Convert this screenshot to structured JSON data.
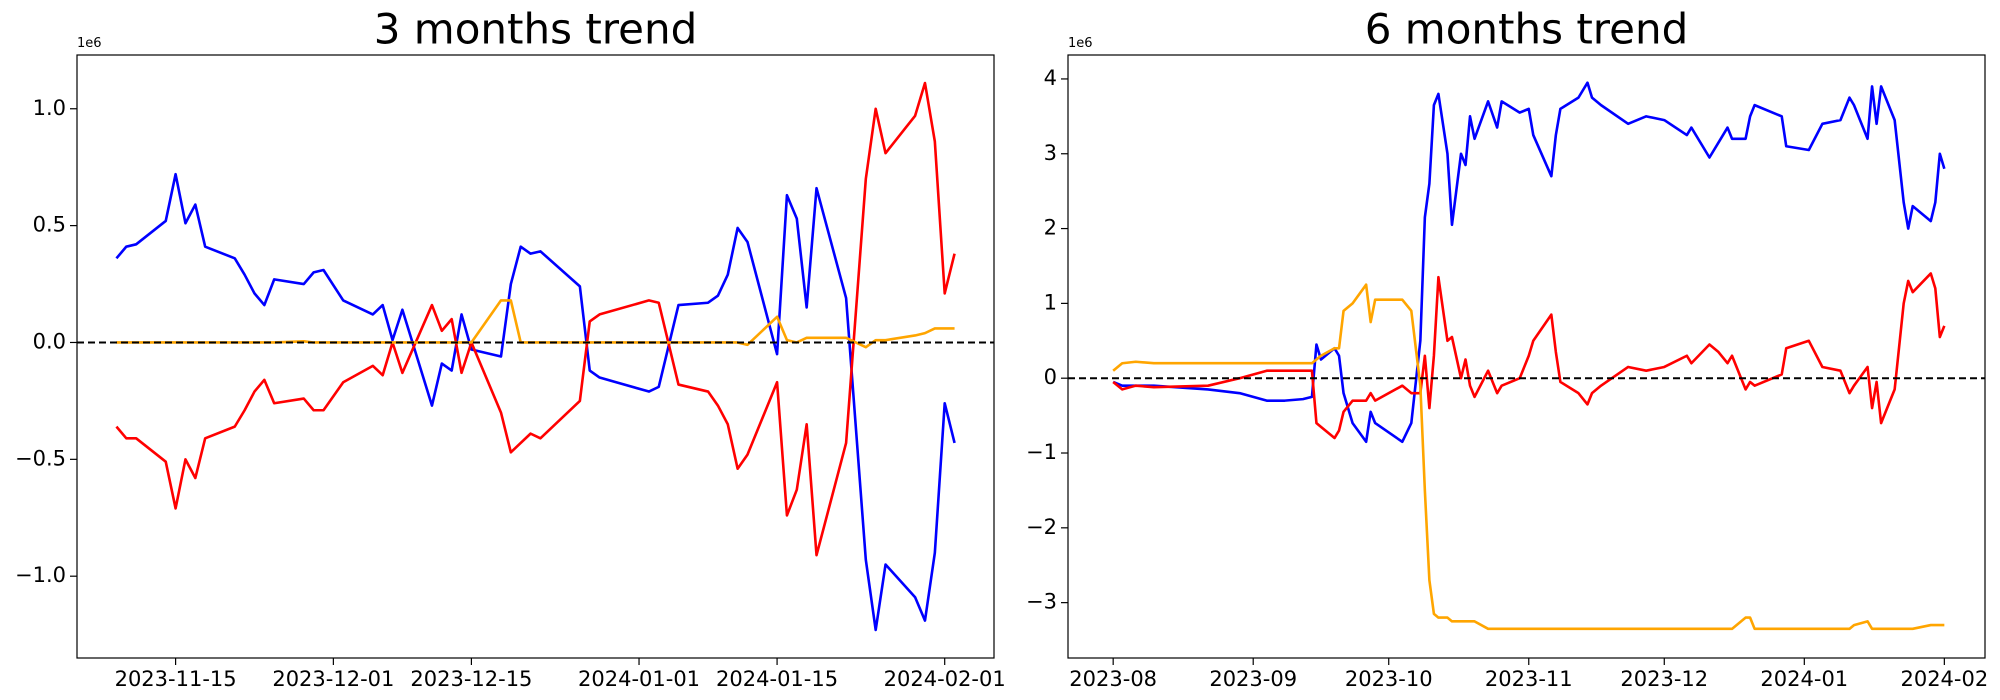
{
  "chart_data": [
    {
      "type": "line",
      "title": "3 months trend",
      "offset_label": "1e6",
      "x": [
        "2023-11-09",
        "2023-11-10",
        "2023-11-11",
        "2023-11-14",
        "2023-11-15",
        "2023-11-16",
        "2023-11-17",
        "2023-11-18",
        "2023-11-21",
        "2023-11-22",
        "2023-11-23",
        "2023-11-24",
        "2023-11-25",
        "2023-11-28",
        "2023-11-29",
        "2023-11-30",
        "2023-12-02",
        "2023-12-05",
        "2023-12-06",
        "2023-12-07",
        "2023-12-08",
        "2023-12-11",
        "2023-12-12",
        "2023-12-13",
        "2023-12-14",
        "2023-12-15",
        "2023-12-18",
        "2023-12-19",
        "2023-12-20",
        "2023-12-21",
        "2023-12-22",
        "2023-12-26",
        "2023-12-27",
        "2023-12-28",
        "2024-01-02",
        "2024-01-03",
        "2024-01-05",
        "2024-01-08",
        "2024-01-09",
        "2024-01-10",
        "2024-01-11",
        "2024-01-12",
        "2024-01-15",
        "2024-01-16",
        "2024-01-17",
        "2024-01-18",
        "2024-01-19",
        "2024-01-22",
        "2024-01-24",
        "2024-01-25",
        "2024-01-26",
        "2024-01-29",
        "2024-01-30",
        "2024-01-31",
        "2024-02-01",
        "2024-02-02"
      ],
      "series": [
        {
          "color": "#0000ff",
          "values": [
            0.36,
            0.41,
            0.42,
            0.52,
            0.72,
            0.51,
            0.59,
            0.41,
            0.36,
            0.29,
            0.21,
            0.16,
            0.27,
            0.25,
            0.3,
            0.31,
            0.18,
            0.12,
            0.16,
            0.01,
            0.14,
            -0.27,
            -0.09,
            -0.12,
            0.12,
            -0.03,
            -0.06,
            0.25,
            0.41,
            0.38,
            0.39,
            0.24,
            -0.12,
            -0.15,
            -0.21,
            -0.19,
            0.16,
            0.17,
            0.2,
            0.29,
            0.49,
            0.43,
            -0.05,
            0.63,
            0.53,
            0.15,
            0.66,
            0.19,
            -0.93,
            -1.23,
            -0.95,
            -1.09,
            -1.19,
            -0.9,
            -0.26,
            -0.43
          ]
        },
        {
          "color": "#ff0000",
          "values": [
            -0.36,
            -0.41,
            -0.41,
            -0.51,
            -0.71,
            -0.5,
            -0.58,
            -0.41,
            -0.36,
            -0.29,
            -0.21,
            -0.16,
            -0.26,
            -0.24,
            -0.29,
            -0.29,
            -0.17,
            -0.1,
            -0.14,
            0,
            -0.13,
            0.16,
            0.05,
            0.1,
            -0.13,
            0,
            -0.3,
            -0.47,
            -0.43,
            -0.39,
            -0.41,
            -0.25,
            0.09,
            0.12,
            0.18,
            0.17,
            -0.18,
            -0.21,
            -0.27,
            -0.35,
            -0.54,
            -0.48,
            -0.17,
            -0.74,
            -0.63,
            -0.35,
            -0.91,
            -0.43,
            0.7,
            1.0,
            0.81,
            0.97,
            1.11,
            0.86,
            0.21,
            0.38
          ]
        },
        {
          "color": "#ffa500",
          "values": [
            0,
            0,
            0,
            0,
            0,
            0,
            0,
            0,
            0,
            0,
            0,
            0,
            0,
            0.005,
            0,
            0,
            0,
            0,
            0,
            0,
            0,
            0,
            0,
            0,
            0,
            0,
            0.18,
            0.18,
            0,
            0,
            0,
            0,
            0,
            0,
            0,
            0,
            0,
            0,
            0,
            0,
            0,
            -0.01,
            0.11,
            0.01,
            0,
            0.02,
            0.02,
            0.02,
            -0.02,
            0.01,
            0.01,
            0.03,
            0.04,
            0.06,
            0.06,
            0.06
          ]
        }
      ],
      "xlim": [
        "2023-11-05",
        "2024-02-06"
      ],
      "ylim": [
        -1.35,
        1.23
      ],
      "xticks": [
        "2023-11-15",
        "2023-12-01",
        "2023-12-15",
        "2024-01-01",
        "2024-01-15",
        "2024-02-01"
      ],
      "yticks": [
        {
          "value": -1,
          "label": "−1.0"
        },
        {
          "value": -0.5,
          "label": "−0.5"
        },
        {
          "value": 0,
          "label": "0.0"
        },
        {
          "value": 0.5,
          "label": "0.5"
        },
        {
          "value": 1,
          "label": "1.0"
        }
      ],
      "reference_line": {
        "value": 0,
        "style": "dashed",
        "color": "#000000"
      }
    },
    {
      "type": "line",
      "title": "6 months trend",
      "offset_label": "1e6",
      "x": [
        "2023-08-01",
        "2023-08-03",
        "2023-08-06",
        "2023-08-10",
        "2023-08-22",
        "2023-08-29",
        "2023-09-04",
        "2023-09-08",
        "2023-09-12",
        "2023-09-14",
        "2023-09-15",
        "2023-09-16",
        "2023-09-19",
        "2023-09-20",
        "2023-09-21",
        "2023-09-23",
        "2023-09-26",
        "2023-09-27",
        "2023-09-28",
        "2023-10-04",
        "2023-10-06",
        "2023-10-08",
        "2023-10-09",
        "2023-10-10",
        "2023-10-11",
        "2023-10-12",
        "2023-10-14",
        "2023-10-15",
        "2023-10-17",
        "2023-10-18",
        "2023-10-19",
        "2023-10-20",
        "2023-10-23",
        "2023-10-25",
        "2023-10-26",
        "2023-10-30",
        "2023-11-01",
        "2023-11-02",
        "2023-11-06",
        "2023-11-07",
        "2023-11-08",
        "2023-11-12",
        "2023-11-14",
        "2023-11-15",
        "2023-11-17",
        "2023-11-23",
        "2023-11-27",
        "2023-12-01",
        "2023-12-06",
        "2023-12-07",
        "2023-12-11",
        "2023-12-13",
        "2023-12-15",
        "2023-12-16",
        "2023-12-19",
        "2023-12-20",
        "2023-12-21",
        "2023-12-27",
        "2023-12-28",
        "2024-01-02",
        "2024-01-05",
        "2024-01-09",
        "2024-01-11",
        "2024-01-12",
        "2024-01-15",
        "2024-01-16",
        "2024-01-17",
        "2024-01-18",
        "2024-01-21",
        "2024-01-23",
        "2024-01-24",
        "2024-01-25",
        "2024-01-29",
        "2024-01-30",
        "2024-01-31",
        "2024-02-01"
      ],
      "series": [
        {
          "color": "#0000ff",
          "values": [
            -0.05,
            -0.1,
            -0.1,
            -0.1,
            -0.15,
            -0.2,
            -0.3,
            -0.3,
            -0.28,
            -0.25,
            0.45,
            0.25,
            0.4,
            0.3,
            -0.2,
            -0.6,
            -0.85,
            -0.45,
            -0.6,
            -0.85,
            -0.6,
            0.5,
            2.15,
            2.6,
            3.65,
            3.8,
            3.0,
            2.05,
            3.0,
            2.85,
            3.5,
            3.2,
            3.7,
            3.35,
            3.7,
            3.55,
            3.6,
            3.25,
            2.7,
            3.25,
            3.6,
            3.75,
            3.95,
            3.75,
            3.65,
            3.4,
            3.5,
            3.45,
            3.25,
            3.35,
            2.95,
            3.15,
            3.35,
            3.2,
            3.2,
            3.5,
            3.65,
            3.5,
            3.1,
            3.05,
            3.4,
            3.45,
            3.75,
            3.65,
            3.2,
            3.9,
            3.4,
            3.9,
            3.45,
            2.35,
            2.0,
            2.3,
            2.1,
            2.35,
            3.0,
            2.8
          ]
        },
        {
          "color": "#ff0000",
          "values": [
            -0.05,
            -0.15,
            -0.1,
            -0.12,
            -0.1,
            0.0,
            0.1,
            0.1,
            0.1,
            0.1,
            -0.6,
            -0.65,
            -0.8,
            -0.7,
            -0.45,
            -0.3,
            -0.3,
            -0.2,
            -0.3,
            -0.1,
            -0.2,
            -0.2,
            0.3,
            -0.4,
            0.3,
            1.35,
            0.5,
            0.55,
            0.0,
            0.25,
            -0.1,
            -0.25,
            0.1,
            -0.2,
            -0.1,
            0.0,
            0.3,
            0.5,
            0.85,
            0.35,
            -0.05,
            -0.2,
            -0.35,
            -0.2,
            -0.1,
            0.15,
            0.1,
            0.15,
            0.3,
            0.2,
            0.45,
            0.35,
            0.2,
            0.3,
            -0.15,
            -0.05,
            -0.1,
            0.05,
            0.4,
            0.5,
            0.15,
            0.1,
            -0.2,
            -0.1,
            0.15,
            -0.4,
            -0.05,
            -0.6,
            -0.15,
            1.0,
            1.3,
            1.15,
            1.4,
            1.2,
            0.55,
            0.7
          ]
        },
        {
          "color": "#ffa500",
          "values": [
            0.1,
            0.2,
            0.22,
            0.2,
            0.2,
            0.2,
            0.2,
            0.2,
            0.2,
            0.2,
            0.25,
            0.3,
            0.4,
            0.4,
            0.9,
            1.0,
            1.25,
            0.75,
            1.05,
            1.05,
            0.9,
            -0.1,
            -1.5,
            -2.7,
            -3.15,
            -3.2,
            -3.2,
            -3.25,
            -3.25,
            -3.25,
            -3.25,
            -3.25,
            -3.35,
            -3.35,
            -3.35,
            -3.35,
            -3.35,
            -3.35,
            -3.35,
            -3.35,
            -3.35,
            -3.35,
            -3.35,
            -3.35,
            -3.35,
            -3.35,
            -3.35,
            -3.35,
            -3.35,
            -3.35,
            -3.35,
            -3.35,
            -3.35,
            -3.35,
            -3.2,
            -3.2,
            -3.35,
            -3.35,
            -3.35,
            -3.35,
            -3.35,
            -3.35,
            -3.35,
            -3.3,
            -3.25,
            -3.35,
            -3.35,
            -3.35,
            -3.35,
            -3.35,
            -3.35,
            -3.35,
            -3.3,
            -3.3,
            -3.3,
            -3.3
          ]
        }
      ],
      "xlim": [
        "2023-07-22",
        "2024-02-10"
      ],
      "ylim": [
        -3.74,
        4.32
      ],
      "xticks": [
        "2023-08",
        "2023-09",
        "2023-10",
        "2023-11",
        "2023-12",
        "2024-01",
        "2024-02"
      ],
      "yticks": [
        {
          "value": -3,
          "label": "−3"
        },
        {
          "value": -2,
          "label": "−2"
        },
        {
          "value": -1,
          "label": "−1"
        },
        0,
        1,
        2,
        3,
        4
      ],
      "reference_line": {
        "value": 0,
        "style": "dashed",
        "color": "#000000"
      }
    }
  ]
}
